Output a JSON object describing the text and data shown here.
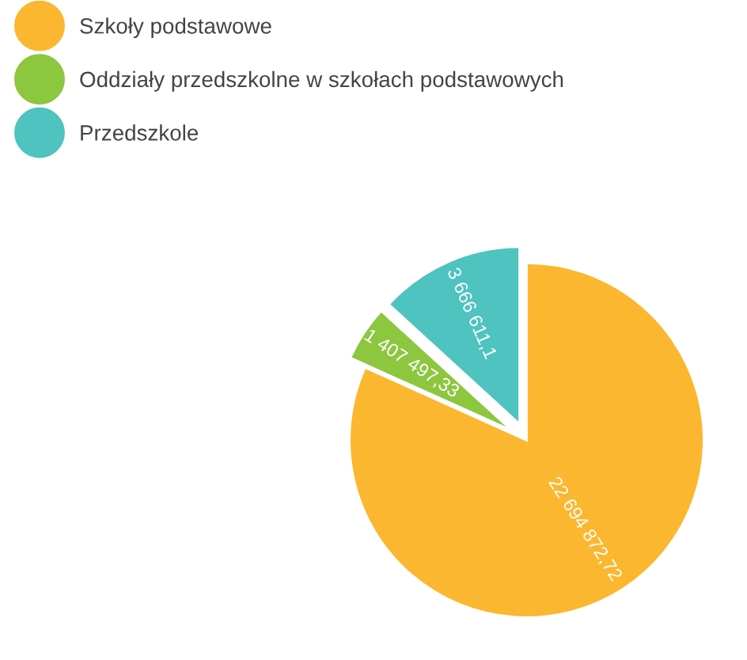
{
  "chart_data": {
    "type": "pie",
    "categories": [
      "Szkoły podstawowe",
      "Oddziały przedszkolne w szkołach podstawowych",
      "Przedszkole"
    ],
    "values": [
      22694872.72,
      1407497.33,
      3666611.1
    ],
    "value_labels": [
      "22 694 872,72",
      "1 407 497,33",
      "3 666 611,1"
    ],
    "colors": [
      "#fbb72f",
      "#8dc63f",
      "#4fc3bf"
    ],
    "legend": "top left"
  }
}
